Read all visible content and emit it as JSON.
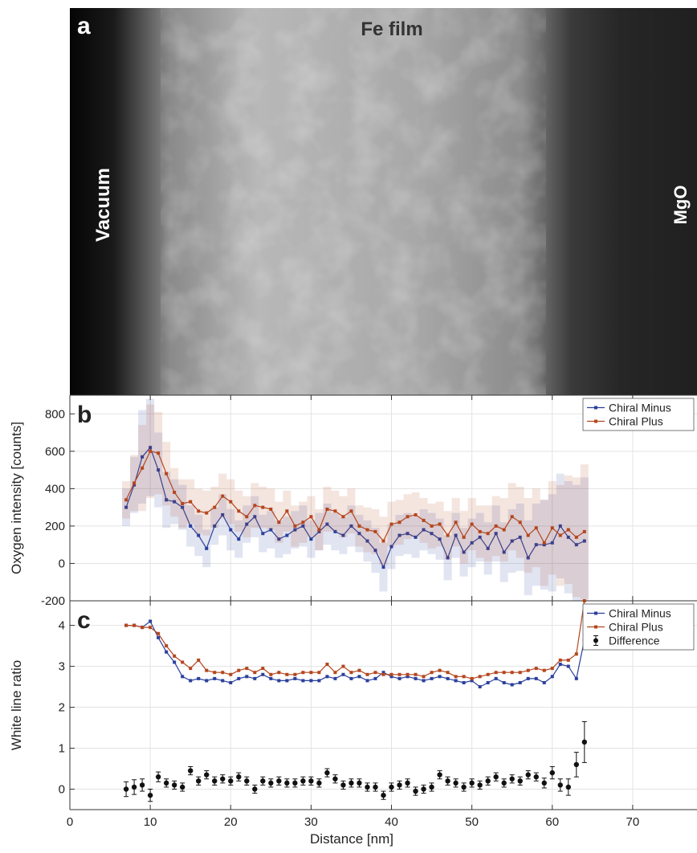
{
  "panel_a": {
    "label": "a",
    "title": "Fe film",
    "left_label": "Vacuum",
    "right_label": "MgO"
  },
  "chart_data": [
    {
      "type": "line",
      "panel_label": "b",
      "ylabel": "Oxygen intensity [counts]",
      "x": [
        7,
        8,
        9,
        10,
        11,
        12,
        13,
        14,
        15,
        16,
        17,
        18,
        19,
        20,
        21,
        22,
        23,
        24,
        25,
        26,
        27,
        28,
        29,
        30,
        31,
        32,
        33,
        34,
        35,
        36,
        37,
        38,
        39,
        40,
        41,
        42,
        43,
        44,
        45,
        46,
        47,
        48,
        49,
        50,
        51,
        52,
        53,
        54,
        55,
        56,
        57,
        58,
        59,
        60,
        61,
        62,
        63,
        64
      ],
      "series": [
        {
          "name": "Chiral Minus",
          "color": "#2a3f9c",
          "values": [
            300,
            420,
            570,
            620,
            500,
            340,
            330,
            300,
            200,
            150,
            80,
            200,
            260,
            180,
            130,
            210,
            250,
            160,
            180,
            130,
            150,
            180,
            200,
            130,
            170,
            210,
            170,
            150,
            200,
            160,
            120,
            70,
            -20,
            90,
            150,
            160,
            140,
            180,
            160,
            130,
            30,
            150,
            60,
            110,
            140,
            80,
            160,
            60,
            120,
            140,
            30,
            100,
            100,
            110,
            200,
            140,
            100,
            120
          ],
          "errors": [
            100,
            150,
            250,
            260,
            200,
            150,
            120,
            120,
            110,
            110,
            100,
            100,
            110,
            110,
            100,
            100,
            110,
            100,
            100,
            100,
            100,
            100,
            110,
            100,
            100,
            110,
            100,
            100,
            110,
            100,
            110,
            120,
            130,
            120,
            110,
            110,
            110,
            110,
            110,
            110,
            120,
            120,
            130,
            130,
            130,
            140,
            150,
            160,
            170,
            180,
            200,
            220,
            240,
            260,
            280,
            300,
            320,
            340
          ]
        },
        {
          "name": "Chiral Plus",
          "color": "#b4461e",
          "values": [
            340,
            430,
            510,
            600,
            590,
            480,
            380,
            320,
            330,
            280,
            270,
            300,
            360,
            330,
            280,
            250,
            310,
            300,
            290,
            220,
            280,
            200,
            220,
            250,
            180,
            290,
            280,
            250,
            280,
            200,
            180,
            170,
            120,
            210,
            220,
            250,
            260,
            230,
            200,
            210,
            150,
            220,
            140,
            210,
            170,
            160,
            200,
            180,
            250,
            220,
            150,
            190,
            110,
            190,
            150,
            180,
            140,
            170
          ],
          "errors": [
            100,
            150,
            230,
            250,
            220,
            170,
            130,
            130,
            120,
            120,
            120,
            110,
            120,
            120,
            110,
            110,
            120,
            110,
            110,
            110,
            110,
            110,
            110,
            110,
            110,
            120,
            110,
            110,
            120,
            110,
            120,
            120,
            130,
            120,
            120,
            120,
            120,
            120,
            120,
            120,
            130,
            130,
            140,
            140,
            140,
            150,
            160,
            170,
            180,
            190,
            200,
            210,
            230,
            250,
            270,
            290,
            320,
            360
          ]
        }
      ],
      "xlim": [
        0,
        78
      ],
      "ylim": [
        -200,
        900
      ],
      "yticks": [
        -200,
        0,
        200,
        400,
        600,
        800
      ],
      "grid": true,
      "legend": "upper right"
    },
    {
      "type": "line",
      "panel_label": "c",
      "xlabel": "Distance [nm]",
      "ylabel": "White line ratio",
      "x": [
        7,
        8,
        9,
        10,
        11,
        12,
        13,
        14,
        15,
        16,
        17,
        18,
        19,
        20,
        21,
        22,
        23,
        24,
        25,
        26,
        27,
        28,
        29,
        30,
        31,
        32,
        33,
        34,
        35,
        36,
        37,
        38,
        39,
        40,
        41,
        42,
        43,
        44,
        45,
        46,
        47,
        48,
        49,
        50,
        51,
        52,
        53,
        54,
        55,
        56,
        57,
        58,
        59,
        60,
        61,
        62,
        63,
        64
      ],
      "series": [
        {
          "name": "Chiral Minus",
          "color": "#2a3f9c",
          "values": [
            4.0,
            4.0,
            3.95,
            4.1,
            3.7,
            3.35,
            3.1,
            2.75,
            2.65,
            2.7,
            2.65,
            2.7,
            2.65,
            2.6,
            2.7,
            2.75,
            2.7,
            2.8,
            2.7,
            2.65,
            2.65,
            2.7,
            2.65,
            2.65,
            2.65,
            2.75,
            2.7,
            2.8,
            2.7,
            2.75,
            2.65,
            2.7,
            2.85,
            2.75,
            2.7,
            2.75,
            2.7,
            2.65,
            2.7,
            2.75,
            2.7,
            2.65,
            2.6,
            2.65,
            2.5,
            2.6,
            2.7,
            2.6,
            2.55,
            2.6,
            2.7,
            2.7,
            2.6,
            2.75,
            3.05,
            3.0,
            2.7,
            3.65
          ]
        },
        {
          "name": "Chiral Plus",
          "color": "#b4461e",
          "values": [
            4.0,
            4.0,
            3.95,
            3.95,
            3.8,
            3.5,
            3.25,
            3.1,
            2.95,
            3.15,
            2.9,
            2.85,
            2.85,
            2.8,
            2.9,
            2.95,
            2.85,
            2.95,
            2.8,
            2.85,
            2.8,
            2.8,
            2.85,
            2.85,
            2.85,
            3.05,
            2.85,
            3.0,
            2.85,
            2.9,
            2.8,
            2.85,
            2.8,
            2.8,
            2.8,
            2.8,
            2.8,
            2.75,
            2.85,
            2.9,
            2.85,
            2.75,
            2.75,
            2.7,
            2.75,
            2.8,
            2.85,
            2.85,
            2.85,
            2.85,
            2.9,
            2.95,
            2.9,
            2.95,
            3.15,
            3.15,
            3.3,
            4.6
          ]
        },
        {
          "name": "Difference",
          "color": "#111111",
          "style": "errorbar",
          "values": [
            0.0,
            0.05,
            0.1,
            -0.15,
            0.3,
            0.15,
            0.1,
            0.05,
            0.45,
            0.2,
            0.35,
            0.2,
            0.25,
            0.2,
            0.3,
            0.2,
            0.0,
            0.2,
            0.15,
            0.2,
            0.15,
            0.15,
            0.2,
            0.2,
            0.15,
            0.4,
            0.25,
            0.1,
            0.15,
            0.15,
            0.05,
            0.05,
            -0.15,
            0.05,
            0.1,
            0.15,
            -0.05,
            0.0,
            0.05,
            0.35,
            0.2,
            0.15,
            0.05,
            0.15,
            0.1,
            0.2,
            0.3,
            0.15,
            0.25,
            0.2,
            0.35,
            0.3,
            0.15,
            0.4,
            0.1,
            0.05,
            0.6,
            1.15
          ],
          "errors": [
            0.18,
            0.18,
            0.15,
            0.15,
            0.12,
            0.1,
            0.1,
            0.1,
            0.1,
            0.1,
            0.1,
            0.1,
            0.1,
            0.1,
            0.1,
            0.1,
            0.1,
            0.1,
            0.1,
            0.1,
            0.1,
            0.1,
            0.1,
            0.1,
            0.1,
            0.1,
            0.1,
            0.1,
            0.1,
            0.1,
            0.1,
            0.1,
            0.1,
            0.1,
            0.1,
            0.1,
            0.1,
            0.1,
            0.1,
            0.1,
            0.1,
            0.1,
            0.1,
            0.1,
            0.1,
            0.1,
            0.1,
            0.1,
            0.1,
            0.1,
            0.1,
            0.1,
            0.12,
            0.15,
            0.15,
            0.2,
            0.3,
            0.5
          ]
        }
      ],
      "xlim": [
        0,
        78
      ],
      "ylim": [
        -0.5,
        4.6
      ],
      "xticks": [
        0,
        10,
        20,
        30,
        40,
        50,
        60,
        70
      ],
      "yticks": [
        0,
        1,
        2,
        3,
        4
      ],
      "grid": true,
      "legend": "upper right"
    }
  ]
}
